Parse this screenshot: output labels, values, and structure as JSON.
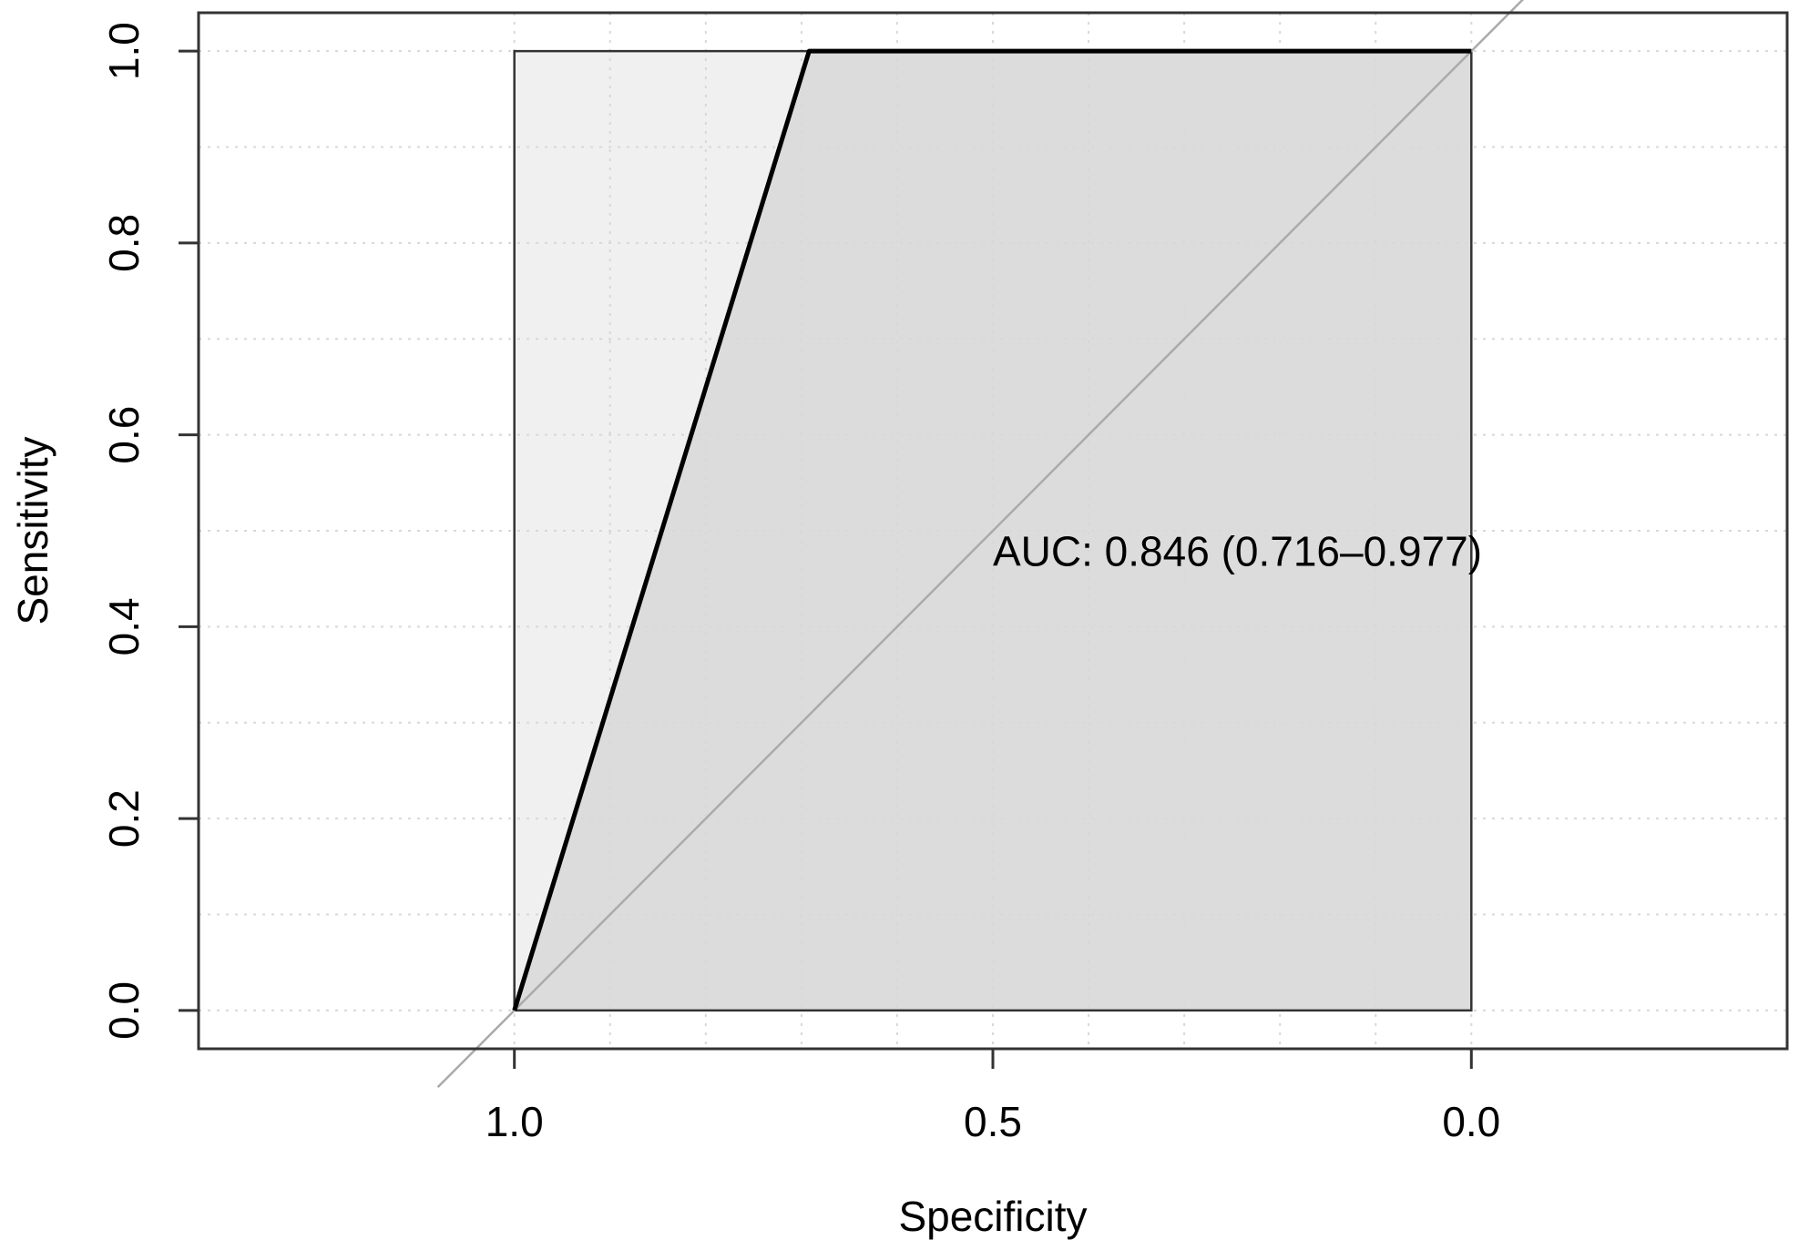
{
  "chart_data": {
    "type": "line",
    "title": "",
    "xlabel": "Specificity",
    "ylabel": "Sensitivity",
    "x_reversed": true,
    "xlim": [
      1.33,
      -0.33
    ],
    "ylim": [
      -0.04,
      1.04
    ],
    "xticks": [
      1.0,
      0.5,
      0.0
    ],
    "xtick_labels": [
      "1.0",
      "0.5",
      "0.0"
    ],
    "yticks": [
      0.0,
      0.2,
      0.4,
      0.6,
      0.8,
      1.0
    ],
    "ytick_labels": [
      "0.0",
      "0.2",
      "0.4",
      "0.6",
      "0.8",
      "1.0"
    ],
    "grid": true,
    "grid_style": "dotted",
    "grid_x": [
      1.0,
      0.9,
      0.8,
      0.7,
      0.6,
      0.5,
      0.4,
      0.3,
      0.2,
      0.1,
      0.0
    ],
    "grid_y": [
      0.0,
      0.1,
      0.2,
      0.3,
      0.4,
      0.5,
      0.6,
      0.7,
      0.8,
      0.9,
      1.0
    ],
    "series": [
      {
        "specificity": [
          1.0,
          0.692,
          0.0
        ],
        "sensitivity": [
          0.0,
          1.0,
          1.0
        ],
        "color": "#000000"
      }
    ],
    "reference_line": {
      "from": [
        1.0,
        0.0
      ],
      "to": [
        0.0,
        1.0
      ],
      "color": "#aaaaaa"
    },
    "auc_area": {
      "specificity": [
        1.0,
        0.692,
        0.0,
        0.0
      ],
      "sensitivity": [
        0.0,
        1.0,
        1.0,
        0.0
      ],
      "fill": "#dcdcdc"
    },
    "ci_area": {
      "specificity": [
        1.0,
        1.0,
        0.0,
        0.0
      ],
      "sensitivity": [
        0.0,
        1.0,
        1.0,
        0.0
      ],
      "fill": "#f0f0f0"
    },
    "annotation": {
      "text": "AUC: 0.846 (0.716–0.977)",
      "x": 0.5,
      "y": 0.475
    }
  }
}
